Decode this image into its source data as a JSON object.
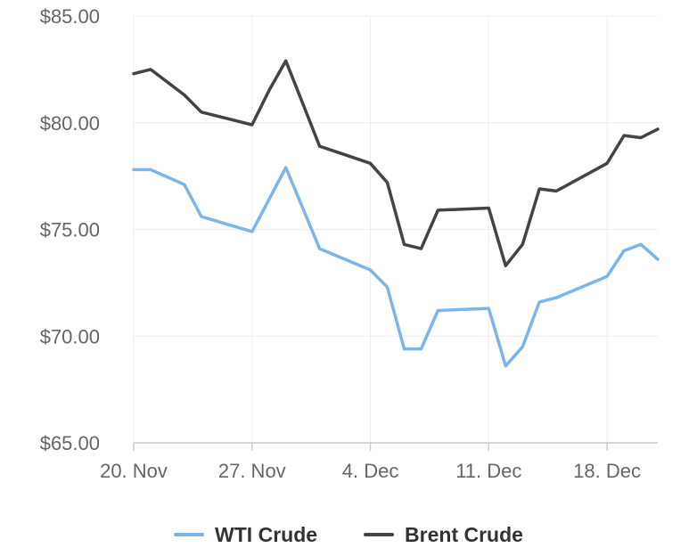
{
  "chart_data": {
    "type": "line",
    "title": "",
    "xlabel": "",
    "ylabel": "",
    "ylim": [
      65,
      85
    ],
    "yticks": [
      {
        "value": 85,
        "label": "$85.00"
      },
      {
        "value": 80,
        "label": "$80.00"
      },
      {
        "value": 75,
        "label": "$75.00"
      },
      {
        "value": 70,
        "label": "$70.00"
      },
      {
        "value": 65,
        "label": "$65.00"
      }
    ],
    "xlim": [
      "2023-11-20",
      "2023-12-21"
    ],
    "xticks": [
      {
        "value": "2023-11-20",
        "label": "20. Nov"
      },
      {
        "value": "2023-11-27",
        "label": "27. Nov"
      },
      {
        "value": "2023-12-04",
        "label": "4. Dec"
      },
      {
        "value": "2023-12-11",
        "label": "11. Dec"
      },
      {
        "value": "2023-12-18",
        "label": "18. Dec"
      }
    ],
    "grid": true,
    "legend_position": "bottom-center",
    "series": [
      {
        "name": "WTI Crude",
        "color": "#7cb5ec",
        "points": [
          {
            "x": "2023-11-20",
            "y": 77.8
          },
          {
            "x": "2023-11-21",
            "y": 77.8
          },
          {
            "x": "2023-11-23",
            "y": 77.1
          },
          {
            "x": "2023-11-24",
            "y": 75.6
          },
          {
            "x": "2023-11-27",
            "y": 74.9
          },
          {
            "x": "2023-11-29",
            "y": 77.9
          },
          {
            "x": "2023-11-30",
            "y": 76.0
          },
          {
            "x": "2023-12-01",
            "y": 74.1
          },
          {
            "x": "2023-12-04",
            "y": 73.1
          },
          {
            "x": "2023-12-05",
            "y": 72.3
          },
          {
            "x": "2023-12-06",
            "y": 69.4
          },
          {
            "x": "2023-12-07",
            "y": 69.4
          },
          {
            "x": "2023-12-08",
            "y": 71.2
          },
          {
            "x": "2023-12-11",
            "y": 71.3
          },
          {
            "x": "2023-12-12",
            "y": 68.6
          },
          {
            "x": "2023-12-13",
            "y": 69.5
          },
          {
            "x": "2023-12-14",
            "y": 71.6
          },
          {
            "x": "2023-12-15",
            "y": 71.8
          },
          {
            "x": "2023-12-18",
            "y": 72.8
          },
          {
            "x": "2023-12-19",
            "y": 74.0
          },
          {
            "x": "2023-12-20",
            "y": 74.3
          },
          {
            "x": "2023-12-21",
            "y": 73.6
          }
        ]
      },
      {
        "name": "Brent Crude",
        "color": "#434348",
        "points": [
          {
            "x": "2023-11-20",
            "y": 82.3
          },
          {
            "x": "2023-11-21",
            "y": 82.5
          },
          {
            "x": "2023-11-23",
            "y": 81.3
          },
          {
            "x": "2023-11-24",
            "y": 80.5
          },
          {
            "x": "2023-11-27",
            "y": 79.9
          },
          {
            "x": "2023-11-28",
            "y": 81.5
          },
          {
            "x": "2023-11-29",
            "y": 82.9
          },
          {
            "x": "2023-11-30",
            "y": 80.9
          },
          {
            "x": "2023-12-01",
            "y": 78.9
          },
          {
            "x": "2023-12-04",
            "y": 78.1
          },
          {
            "x": "2023-12-05",
            "y": 77.2
          },
          {
            "x": "2023-12-06",
            "y": 74.3
          },
          {
            "x": "2023-12-07",
            "y": 74.1
          },
          {
            "x": "2023-12-08",
            "y": 75.9
          },
          {
            "x": "2023-12-11",
            "y": 76.0
          },
          {
            "x": "2023-12-12",
            "y": 73.3
          },
          {
            "x": "2023-12-13",
            "y": 74.3
          },
          {
            "x": "2023-12-14",
            "y": 76.9
          },
          {
            "x": "2023-12-15",
            "y": 76.8
          },
          {
            "x": "2023-12-18",
            "y": 78.1
          },
          {
            "x": "2023-12-19",
            "y": 79.4
          },
          {
            "x": "2023-12-20",
            "y": 79.3
          },
          {
            "x": "2023-12-21",
            "y": 79.7
          }
        ]
      }
    ]
  }
}
